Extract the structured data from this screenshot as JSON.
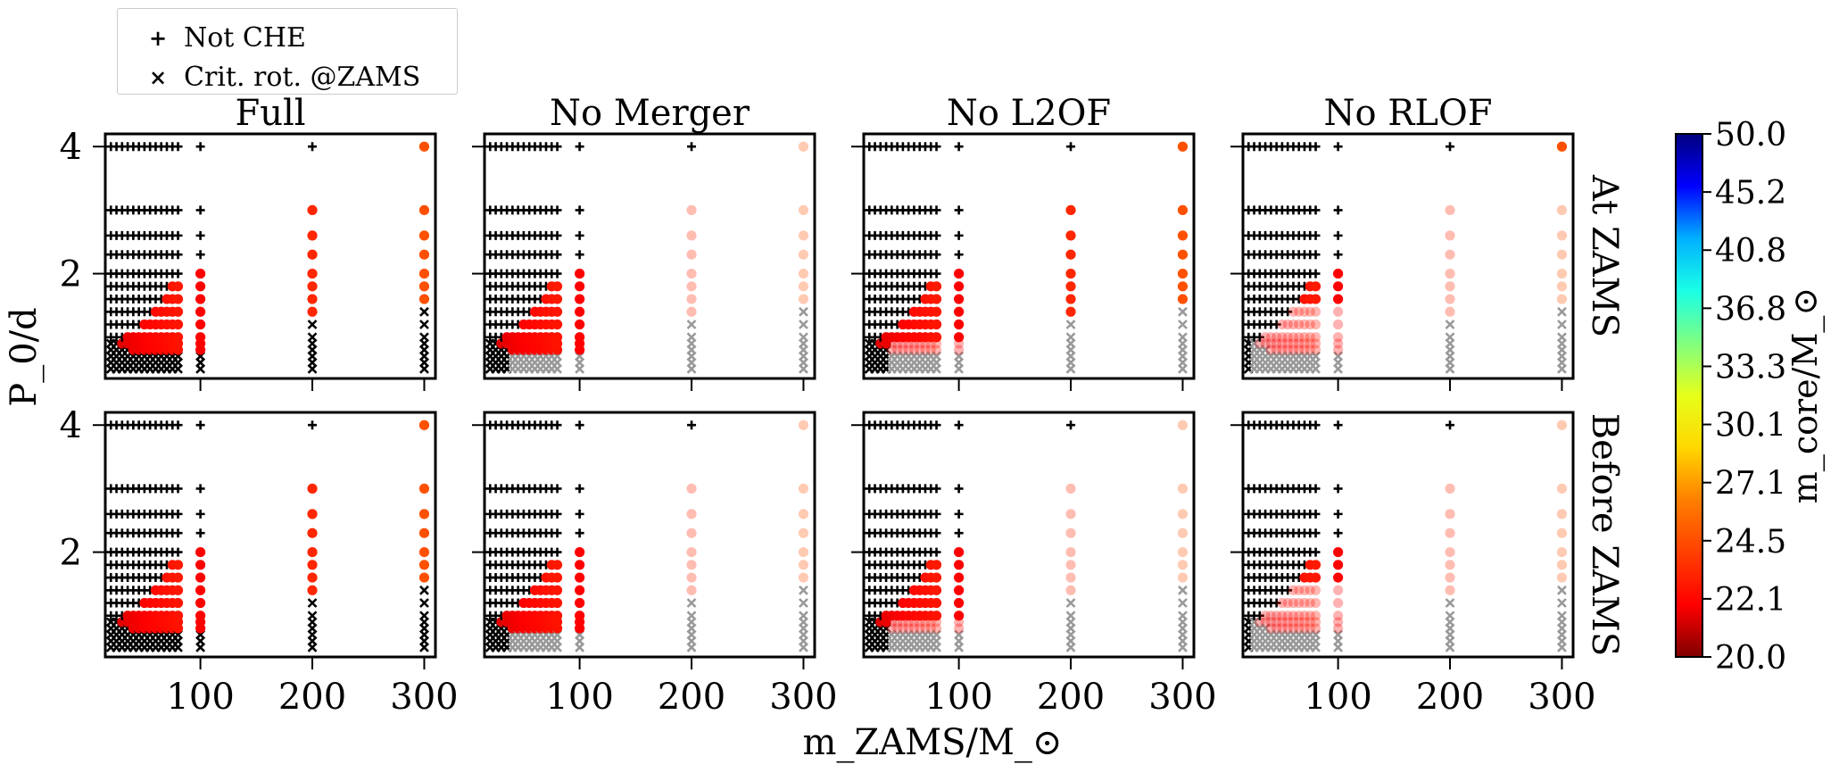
{
  "legend": {
    "items": [
      {
        "label": "Not CHE",
        "marker": "+"
      },
      {
        "label": "Crit. rot. @ZAMS",
        "marker": "×"
      }
    ]
  },
  "chart_data": {
    "type": "scatter",
    "panel_titles": [
      "Full",
      "No Merger",
      "No L2OF",
      "No RLOF"
    ],
    "row_labels": [
      "At ZAMS",
      "Before ZAMS"
    ],
    "xlabel": "m_ZAMS/M_⊙",
    "ylabel": "P_0/d",
    "x_ticks": [
      100,
      200,
      300
    ],
    "y_ticks": [
      2,
      4
    ],
    "xlim": [
      15,
      310
    ],
    "ylim": [
      0.35,
      4.2
    ],
    "colorbar": {
      "label": "m_core/M_⊙",
      "range": [
        20.0,
        50.0
      ],
      "tick_labels": [
        "20.0",
        "22.1",
        "24.5",
        "27.1",
        "30.1",
        "33.3",
        "36.8",
        "40.8",
        "45.2",
        "50.0"
      ],
      "colormap": "jet_r"
    },
    "marker_legend": {
      "plus": "Not CHE",
      "cross": "Crit. rot. @ZAMS",
      "circle_faded": "faded circles and grey crosses indicate models excluded under the panel's assumption"
    },
    "grid_masses": [
      20,
      25,
      30,
      35,
      40,
      45,
      50,
      55,
      60,
      65,
      70,
      75,
      80,
      100,
      200,
      300
    ],
    "grid_periods": [
      0.5,
      0.6,
      0.7,
      0.8,
      0.9,
      1.0,
      1.2,
      1.4,
      1.6,
      1.8,
      2.0,
      2.3,
      2.6,
      3.0,
      4.0
    ],
    "colors": {
      "not_che": "#000000",
      "crit": "#000000",
      "crit_excluded": "#999999"
    }
  }
}
